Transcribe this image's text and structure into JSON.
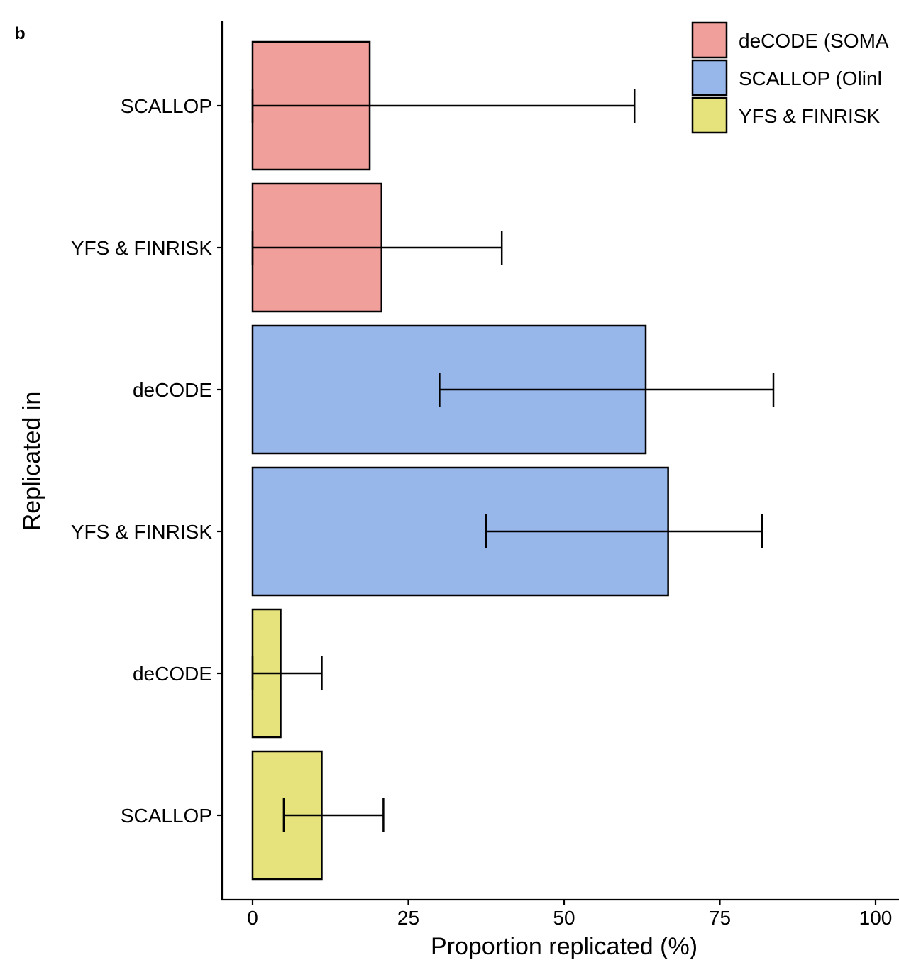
{
  "panel_label": "b",
  "chart_data": {
    "type": "bar",
    "orientation": "horizontal",
    "xlabel": "Proportion replicated (%)",
    "ylabel": "Replicated in",
    "xlim": [
      0,
      100
    ],
    "xticks": [
      0,
      25,
      50,
      75,
      100
    ],
    "grid": false,
    "legend_position": "top-right",
    "legend": [
      {
        "label": "deCODE (SOMA",
        "color": "#F09F9B"
      },
      {
        "label": "SCALLOP (Olinl",
        "color": "#97B6EA"
      },
      {
        "label": "YFS & FINRISK",
        "color": "#E6E37D"
      }
    ],
    "bars": [
      {
        "category": "SCALLOP",
        "group": 0,
        "value": 18.8,
        "ci_low": 0,
        "ci_high": 61.3
      },
      {
        "category": "YFS & FINRISK",
        "group": 0,
        "value": 20.7,
        "ci_low": 0,
        "ci_high": 40.0
      },
      {
        "category": "deCODE",
        "group": 1,
        "value": 63.1,
        "ci_low": 30.0,
        "ci_high": 83.6
      },
      {
        "category": "YFS & FINRISK",
        "group": 1,
        "value": 66.7,
        "ci_low": 37.5,
        "ci_high": 81.8
      },
      {
        "category": "deCODE",
        "group": 2,
        "value": 4.5,
        "ci_low": 0,
        "ci_high": 11.1
      },
      {
        "category": "SCALLOP",
        "group": 2,
        "value": 11.1,
        "ci_low": 5.0,
        "ci_high": 21.0
      }
    ]
  }
}
